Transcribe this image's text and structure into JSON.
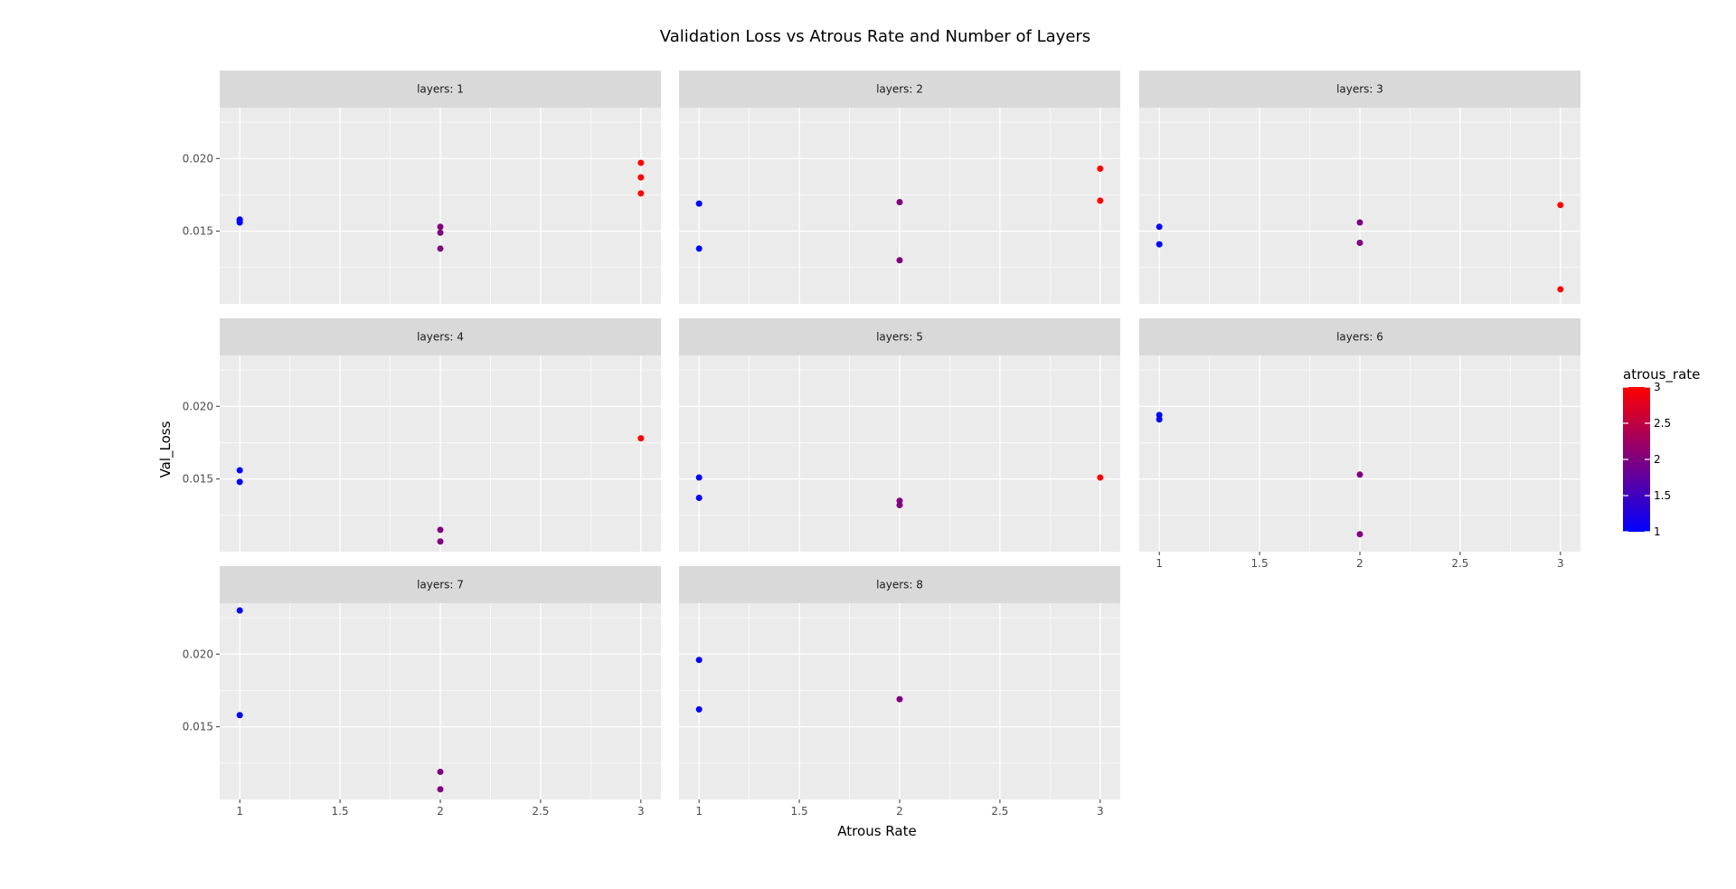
{
  "chart_data": {
    "type": "scatter",
    "title": "Validation Loss vs Atrous Rate and Number of Layers",
    "xlabel": "Atrous Rate",
    "ylabel": "Val_Loss",
    "xlim": [
      0.9,
      3.1
    ],
    "ylim": [
      0.01,
      0.0235
    ],
    "x_ticks": [
      1,
      1.5,
      2,
      2.5,
      3
    ],
    "x_tick_labels": [
      "1",
      "1.5",
      "2",
      "2.5",
      "3"
    ],
    "y_ticks": [
      0.015,
      0.02
    ],
    "y_tick_labels": [
      "0.015",
      "0.020"
    ],
    "grid": true,
    "legend": {
      "title": "atrous_rate",
      "type": "colorbar",
      "placement": "right",
      "low_color": "#0000ff",
      "high_color": "#ff0000",
      "range": [
        1,
        3
      ],
      "ticks": [
        1,
        1.5,
        2,
        2.5,
        3
      ],
      "tick_labels": [
        "1",
        "1.5",
        "2",
        "2.5",
        "3"
      ]
    },
    "facets": [
      {
        "label": "layers: 1",
        "points": [
          [
            1,
            0.0158
          ],
          [
            1,
            0.0157
          ],
          [
            1,
            0.0156
          ],
          [
            2,
            0.0153
          ],
          [
            2,
            0.0149
          ],
          [
            2,
            0.0138
          ],
          [
            3,
            0.0197
          ],
          [
            3,
            0.0187
          ],
          [
            3,
            0.0176
          ]
        ]
      },
      {
        "label": "layers: 2",
        "points": [
          [
            1,
            0.0169
          ],
          [
            1,
            0.0138
          ],
          [
            2,
            0.017
          ],
          [
            2,
            0.013
          ],
          [
            3,
            0.0193
          ],
          [
            3,
            0.0171
          ]
        ]
      },
      {
        "label": "layers: 3",
        "points": [
          [
            1,
            0.0153
          ],
          [
            1,
            0.0141
          ],
          [
            2,
            0.0156
          ],
          [
            2,
            0.0142
          ],
          [
            3,
            0.0168
          ],
          [
            3,
            0.011
          ]
        ]
      },
      {
        "label": "layers: 4",
        "points": [
          [
            1,
            0.0156
          ],
          [
            1,
            0.0148
          ],
          [
            2,
            0.0115
          ],
          [
            2,
            0.0107
          ],
          [
            3,
            0.0178
          ]
        ]
      },
      {
        "label": "layers: 5",
        "points": [
          [
            1,
            0.0151
          ],
          [
            1,
            0.0137
          ],
          [
            2,
            0.0135
          ],
          [
            2,
            0.0132
          ],
          [
            3,
            0.0151
          ]
        ]
      },
      {
        "label": "layers: 6",
        "points": [
          [
            1,
            0.0194
          ],
          [
            1,
            0.0191
          ],
          [
            2,
            0.0153
          ],
          [
            2,
            0.0112
          ]
        ]
      },
      {
        "label": "layers: 7",
        "points": [
          [
            1,
            0.023
          ],
          [
            1,
            0.0158
          ],
          [
            2,
            0.0119
          ],
          [
            2,
            0.0107
          ]
        ]
      },
      {
        "label": "layers: 8",
        "points": [
          [
            1,
            0.0196
          ],
          [
            1,
            0.0162
          ],
          [
            2,
            0.0169
          ]
        ]
      }
    ]
  }
}
